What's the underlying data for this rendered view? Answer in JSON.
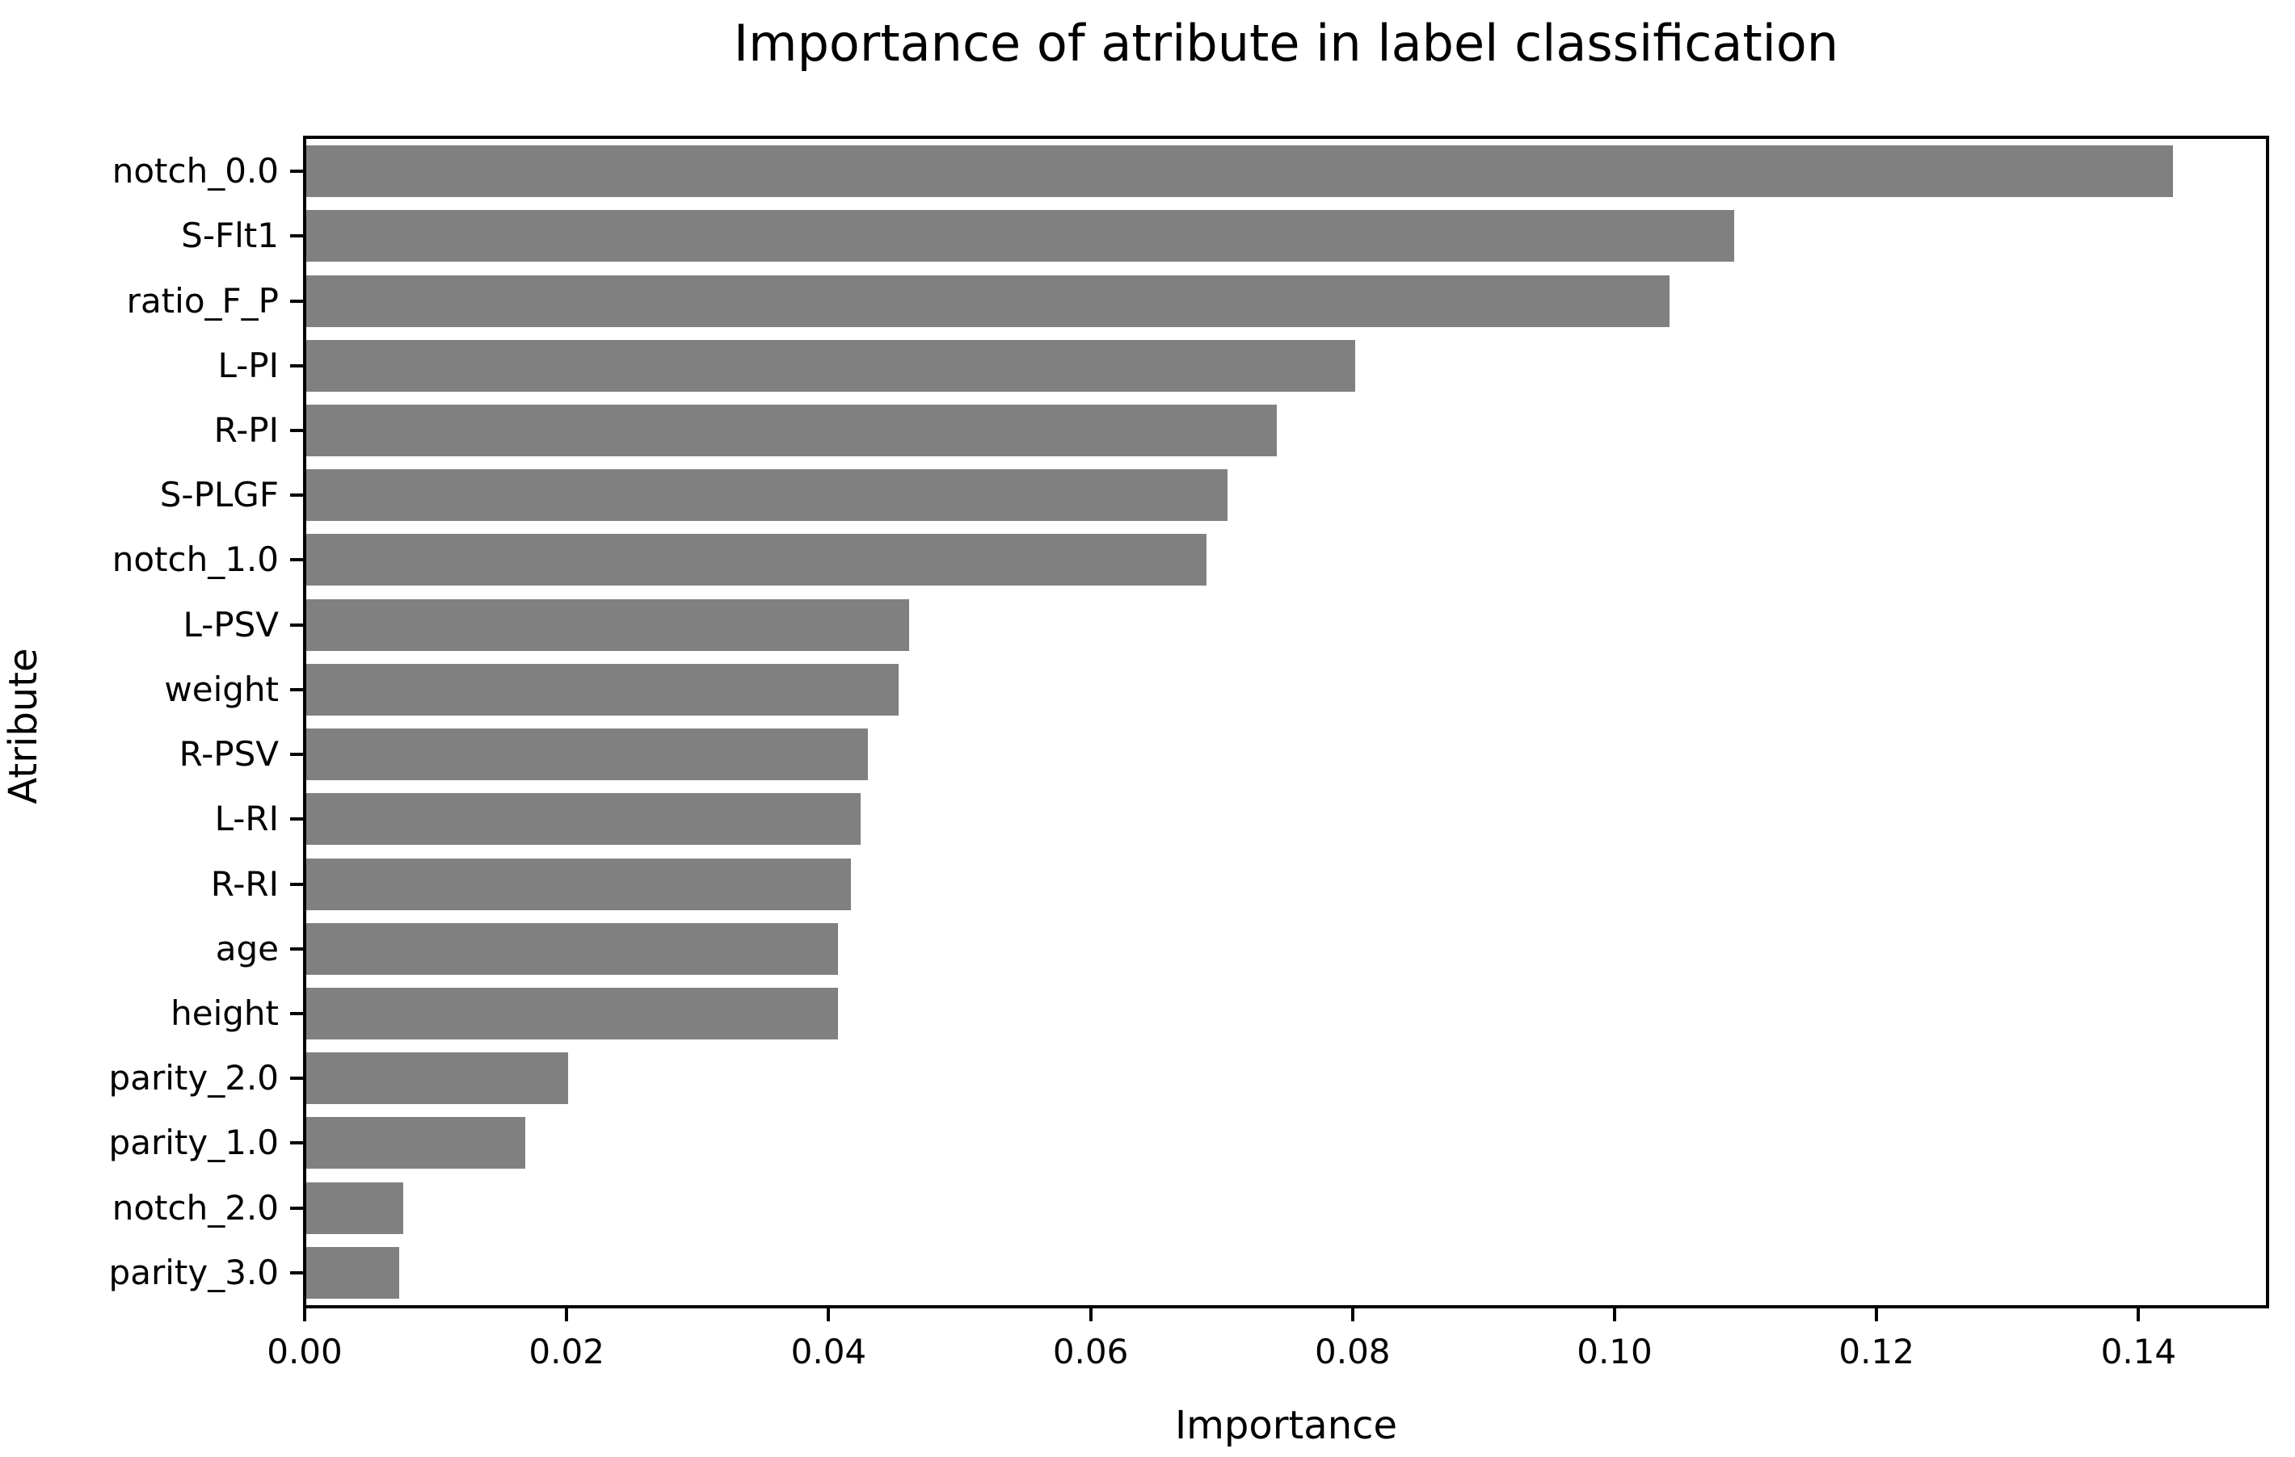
{
  "figure": {
    "background": "#ffffff",
    "text_color": "#000000",
    "axis_color": "#000000"
  },
  "chart_data": {
    "type": "bar",
    "orientation": "horizontal",
    "title": "Importance of atribute in label classification",
    "xlabel": "Importance",
    "ylabel": "Atribute",
    "categories": [
      "notch_0.0",
      "S-Flt1",
      "ratio_F_P",
      "L-PI",
      "R-PI",
      "S-PLGF",
      "notch_1.0",
      "L-PSV",
      "weight",
      "R-PSV",
      "L-RI",
      "R-RI",
      "age",
      "height",
      "parity_2.0",
      "parity_1.0",
      "notch_2.0",
      "parity_3.0"
    ],
    "values": [
      0.1425,
      0.109,
      0.1041,
      0.0801,
      0.0741,
      0.0703,
      0.0687,
      0.046,
      0.0452,
      0.0429,
      0.0423,
      0.0416,
      0.0406,
      0.0406,
      0.02,
      0.0167,
      0.0074,
      0.0071
    ],
    "xlim": [
      0,
      0.1496
    ],
    "x_ticks": [
      0,
      0.02,
      0.04,
      0.06,
      0.08,
      0.1,
      0.12,
      0.14
    ],
    "x_tick_labels": [
      "0.00",
      "0.02",
      "0.04",
      "0.06",
      "0.08",
      "0.10",
      "0.12",
      "0.14"
    ],
    "bar_color": "#808080",
    "grid": false,
    "legend": "none"
  }
}
